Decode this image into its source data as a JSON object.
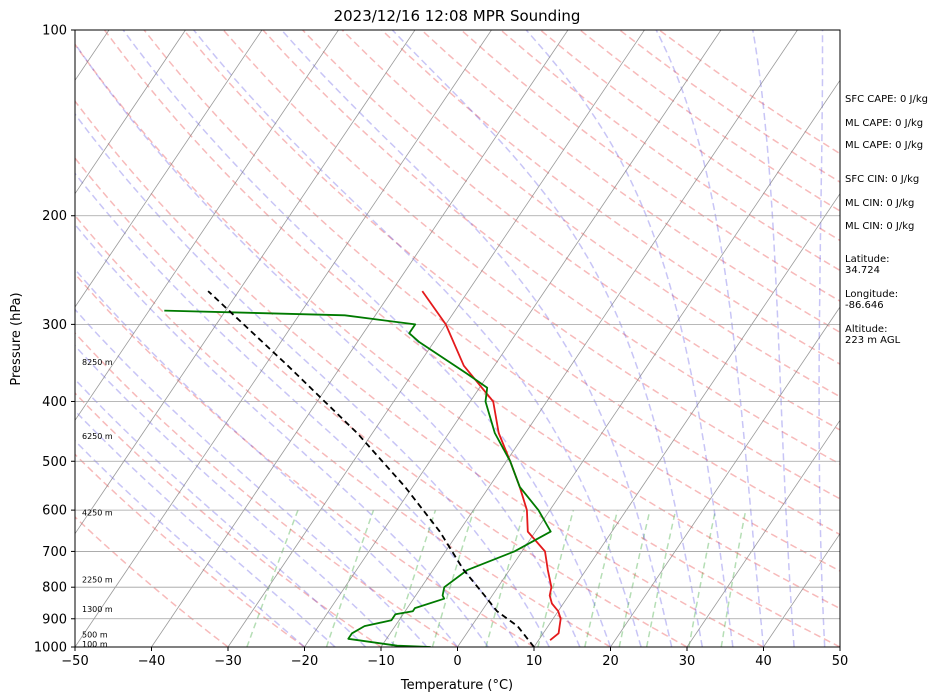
{
  "chart_data": {
    "type": "line",
    "title": "2023/12/16 12:08 MPR Sounding",
    "xlabel": "Temperature (°C)",
    "ylabel": "Pressure (hPa)",
    "xlim": [
      -50,
      50
    ],
    "ylim": [
      1000,
      100
    ],
    "y_scale": "log",
    "skew_t": true,
    "x_ticks": [
      "−50",
      "−40",
      "−30",
      "−20",
      "−10",
      "0",
      "10",
      "20",
      "30",
      "40",
      "50"
    ],
    "x_tick_values": [
      -50,
      -40,
      -30,
      -20,
      -10,
      0,
      10,
      20,
      30,
      40,
      50
    ],
    "y_ticks": [
      "100",
      "200",
      "300",
      "400",
      "500",
      "600",
      "700",
      "800",
      "900",
      "1000"
    ],
    "y_tick_values": [
      100,
      200,
      300,
      400,
      500,
      600,
      700,
      800,
      900,
      1000
    ],
    "grid": true,
    "series": [
      {
        "key": "temperature",
        "color": "#e41a1c",
        "style": "solid",
        "points": [
          [
            11.5,
            975
          ],
          [
            12,
            950
          ],
          [
            11.5,
            925
          ],
          [
            11,
            900
          ],
          [
            10,
            875
          ],
          [
            8.5,
            850
          ],
          [
            7.5,
            825
          ],
          [
            7,
            800
          ],
          [
            5,
            750
          ],
          [
            3,
            700
          ],
          [
            -1,
            650
          ],
          [
            -3,
            600
          ],
          [
            -6,
            550
          ],
          [
            -9.5,
            500
          ],
          [
            -13.5,
            450
          ],
          [
            -17,
            400
          ],
          [
            -24,
            350
          ],
          [
            -30,
            300
          ],
          [
            -36,
            265
          ]
        ]
      },
      {
        "key": "dewpoint",
        "color": "#007a00",
        "style": "solid",
        "points": [
          [
            -3.5,
            1000
          ],
          [
            -8,
            995
          ],
          [
            -15,
            970
          ],
          [
            -15,
            950
          ],
          [
            -14,
            925
          ],
          [
            -11,
            905
          ],
          [
            -11,
            885
          ],
          [
            -9,
            875
          ],
          [
            -9,
            865
          ],
          [
            -6,
            835
          ],
          [
            -6.5,
            825
          ],
          [
            -7,
            800
          ],
          [
            -5.5,
            750
          ],
          [
            -1,
            700
          ],
          [
            2,
            650
          ],
          [
            -1.5,
            600
          ],
          [
            -6,
            550
          ],
          [
            -9.5,
            500
          ],
          [
            -14,
            450
          ],
          [
            -18,
            400
          ],
          [
            -19,
            380
          ],
          [
            -23,
            360
          ],
          [
            -32,
            320
          ],
          [
            -34,
            310
          ],
          [
            -34,
            300
          ],
          [
            -44,
            290
          ],
          [
            -68,
            285
          ]
        ]
      },
      {
        "key": "parcel",
        "color": "#000000",
        "style": "dashed",
        "points": [
          [
            10,
            1000
          ],
          [
            6,
            925
          ],
          [
            2,
            875
          ],
          [
            -1,
            825
          ],
          [
            -6,
            750
          ],
          [
            -12.5,
            650
          ],
          [
            -21,
            550
          ],
          [
            -32,
            450
          ],
          [
            -47,
            350
          ],
          [
            -64,
            265
          ]
        ]
      }
    ],
    "altitude_labels": [
      {
        "label": "100 m",
        "p": 988
      },
      {
        "label": "500 m",
        "p": 955
      },
      {
        "label": "1300 m",
        "p": 867
      },
      {
        "label": "2250 m",
        "p": 778
      },
      {
        "label": "4250 m",
        "p": 605
      },
      {
        "label": "6250 m",
        "p": 455
      },
      {
        "label": "8250 m",
        "p": 345
      }
    ],
    "annotations": [
      {
        "text": "SFC CAPE: 0 J/kg"
      },
      {
        "text": "ML CAPE: 0 J/kg"
      },
      {
        "text": "ML CAPE: 0 J/kg"
      },
      {
        "text": "SFC CIN: 0 J/kg"
      },
      {
        "text": "ML CIN: 0 J/kg"
      },
      {
        "text": "ML CIN: 0 J/kg"
      },
      {
        "text": "Latitude:",
        "value": "34.724"
      },
      {
        "text": "Longitude:",
        "value": "-86.646"
      },
      {
        "text": "Altitude:",
        "value": "223 m AGL"
      }
    ]
  }
}
